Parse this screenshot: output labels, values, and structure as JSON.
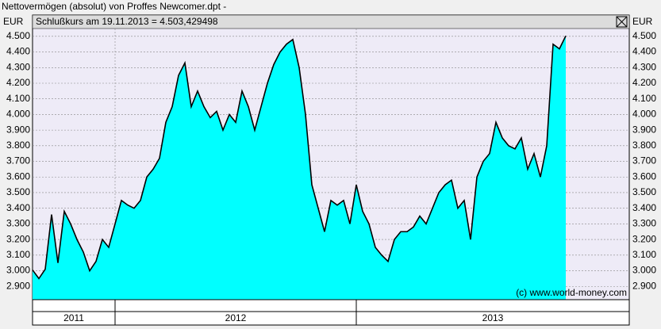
{
  "chart_data": {
    "type": "area",
    "title": "Nettovermögen (absolut) von Proffes Newcomer.dpt -",
    "header_text": "Schlußkurs am 19.11.2013 = 4.503,429498",
    "currency": "EUR",
    "watermark": "(c) www.world-money.com",
    "categories": [
      "2011",
      null,
      null,
      null,
      null,
      null,
      null,
      null,
      null,
      null,
      null,
      null,
      null,
      "2012",
      null,
      null,
      null,
      null,
      null,
      null,
      null,
      null,
      null,
      null,
      null,
      null,
      null,
      null,
      null,
      null,
      null,
      null,
      null,
      null,
      null,
      null,
      null,
      null,
      null,
      null,
      null,
      null,
      null,
      null,
      null,
      null,
      null,
      null,
      null,
      null,
      null,
      "2013",
      null,
      null,
      null,
      null,
      null,
      null,
      null,
      null,
      null,
      null,
      null,
      null,
      null,
      null,
      null,
      null,
      null,
      null,
      null,
      null,
      null,
      null,
      null,
      null,
      null,
      null,
      null,
      null,
      null,
      null,
      null,
      null,
      null,
      null,
      null,
      null,
      null,
      null,
      null,
      null,
      null,
      null
    ],
    "values": [
      3005,
      2950,
      3010,
      3360,
      3050,
      3380,
      3300,
      3200,
      3120,
      3000,
      3060,
      3200,
      3150,
      3300,
      3450,
      3420,
      3400,
      3450,
      3600,
      3650,
      3720,
      3950,
      4050,
      4250,
      4330,
      4050,
      4150,
      4050,
      3980,
      4020,
      3900,
      4000,
      3950,
      4150,
      4050,
      3900,
      4050,
      4200,
      4320,
      4400,
      4450,
      4480,
      4300,
      4000,
      3550,
      3400,
      3250,
      3450,
      3420,
      3450,
      3300,
      3550,
      3380,
      3300,
      3150,
      3100,
      3060,
      3200,
      3250,
      3250,
      3280,
      3350,
      3300,
      3400,
      3500,
      3550,
      3580,
      3400,
      3450,
      3200,
      3600,
      3700,
      3750,
      3950,
      3850,
      3800,
      3780,
      3850,
      3650,
      3750,
      3600,
      3800,
      4450,
      4420,
      4503,
      null,
      null,
      null,
      null,
      null,
      null,
      null,
      null,
      null
    ],
    "color": "#00ffff",
    "line_color": "#000000",
    "ylim": [
      2815,
      4550
    ],
    "yticks": [
      {
        "value": 2900,
        "label": "2.900"
      },
      {
        "value": 3000,
        "label": "3.000"
      },
      {
        "value": 3100,
        "label": "3.100"
      },
      {
        "value": 3200,
        "label": "3.200"
      },
      {
        "value": 3300,
        "label": "3.300"
      },
      {
        "value": 3400,
        "label": "3.400"
      },
      {
        "value": 3500,
        "label": "3.500"
      },
      {
        "value": 3600,
        "label": "3.600"
      },
      {
        "value": 3700,
        "label": "3.700"
      },
      {
        "value": 3800,
        "label": "3.800"
      },
      {
        "value": 3900,
        "label": "3.900"
      },
      {
        "value": 4000,
        "label": "4.000"
      },
      {
        "value": 4100,
        "label": "4.100"
      },
      {
        "value": 4200,
        "label": "4.200"
      },
      {
        "value": 4300,
        "label": "4.300"
      },
      {
        "value": 4400,
        "label": "4.400"
      },
      {
        "value": 4500,
        "label": "4.500"
      }
    ],
    "grid": true
  }
}
